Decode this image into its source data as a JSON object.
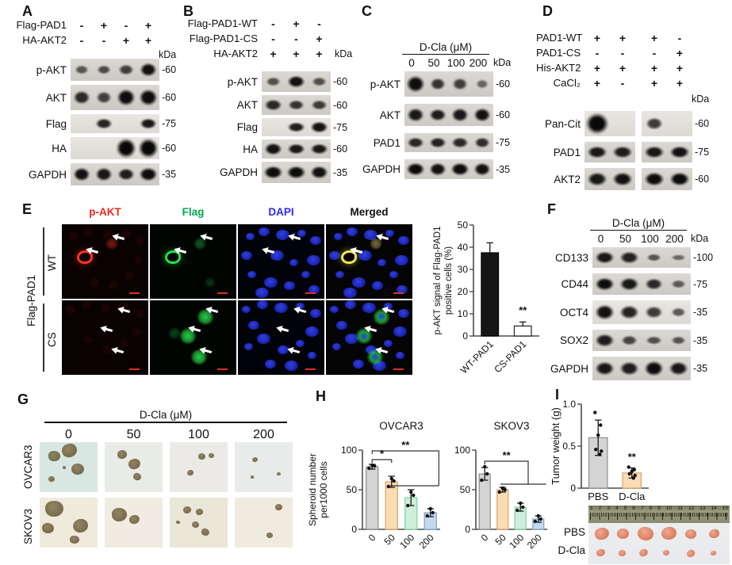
{
  "panel_a": {
    "label": "A",
    "conditions": [
      {
        "name": "Flag-PAD1",
        "values": [
          "-",
          "+",
          "-",
          "+"
        ]
      },
      {
        "name": "HA-AKT2",
        "values": [
          "-",
          "-",
          "+",
          "+"
        ]
      }
    ],
    "kda": "kDa",
    "blots": [
      {
        "label": "p-AKT",
        "marker": "60",
        "bands": [
          0.3,
          0.4,
          0.5,
          0.9
        ]
      },
      {
        "label": "AKT",
        "marker": "60",
        "bands": [
          0.7,
          0.5,
          0.95,
          0.95
        ]
      },
      {
        "label": "Flag",
        "marker": "75",
        "bands": [
          0,
          0.75,
          0,
          0.85
        ],
        "light": true
      },
      {
        "label": "HA",
        "marker": "60",
        "bands": [
          0,
          0,
          1,
          1
        ],
        "light": true
      },
      {
        "label": "GAPDH",
        "marker": "35",
        "bands": [
          0.9,
          0.85,
          0.8,
          0.95
        ]
      }
    ]
  },
  "panel_b": {
    "label": "B",
    "conditions": [
      {
        "name": "Flag-PAD1-WT",
        "values": [
          "-",
          "+",
          "-"
        ]
      },
      {
        "name": "Flag-PAD1-CS",
        "values": [
          "-",
          "-",
          "+"
        ]
      },
      {
        "name": "HA-AKT2",
        "values": [
          "+",
          "+",
          "+"
        ]
      }
    ],
    "kda": "kDa",
    "blots": [
      {
        "label": "p-AKT",
        "marker": "60",
        "bands": [
          0.35,
          0.9,
          0.35
        ]
      },
      {
        "label": "AKT",
        "marker": "60",
        "bands": [
          0.7,
          0.6,
          0.55
        ]
      },
      {
        "label": "Flag",
        "marker": "75",
        "bands": [
          0,
          0.8,
          0.9
        ],
        "light": true
      },
      {
        "label": "HA",
        "marker": "60",
        "bands": [
          0.9,
          0.85,
          0.85
        ]
      },
      {
        "label": "GAPDH",
        "marker": "35",
        "bands": [
          0.95,
          0.95,
          0.9
        ]
      }
    ]
  },
  "panel_c": {
    "label": "C",
    "dose_title": "D-Cla (μM)",
    "doses": [
      "0",
      "50",
      "100",
      "200"
    ],
    "kda": "kDa",
    "blots": [
      {
        "label": "p-AKT",
        "marker": "60",
        "bands": [
          0.95,
          0.6,
          0.5,
          0.15
        ]
      },
      {
        "label": "AKT",
        "marker": "60",
        "bands": [
          0.85,
          0.8,
          0.85,
          0.9
        ]
      },
      {
        "label": "PAD1",
        "marker": "75",
        "bands": [
          0.7,
          0.75,
          0.7,
          0.65
        ]
      },
      {
        "label": "GAPDH",
        "marker": "35",
        "bands": [
          0.95,
          0.9,
          0.95,
          0.9
        ]
      }
    ]
  },
  "panel_d": {
    "label": "D",
    "conditions": [
      {
        "name": "PAD1-WT",
        "values": [
          "+",
          "+",
          "+",
          "-"
        ]
      },
      {
        "name": "PAD1-CS",
        "values": [
          "-",
          "-",
          "-",
          "+"
        ]
      },
      {
        "name": "His-AKT2",
        "values": [
          "+",
          "+",
          "+",
          "+"
        ]
      },
      {
        "name": "CaCl₂",
        "values": [
          "+",
          "-",
          "+",
          "+"
        ]
      }
    ],
    "kda": "kDa",
    "blots": [
      {
        "label": "Pan-Cit",
        "marker": "60",
        "bands": [
          1,
          0,
          0.55,
          0
        ],
        "light": true
      },
      {
        "label": "PAD1",
        "marker": "75",
        "bands": [
          0.85,
          0.8,
          0.85,
          0.9
        ]
      },
      {
        "label": "AKT2",
        "marker": "60",
        "bands": [
          0.85,
          0.9,
          0.95,
          0.95
        ]
      }
    ]
  },
  "panel_e": {
    "label": "E",
    "row_group_label": "Flag-PAD1",
    "rows": [
      "WT",
      "CS"
    ],
    "channels": [
      {
        "name": "p-AKT",
        "color": "#e8281e"
      },
      {
        "name": "Flag",
        "color": "#00a651"
      },
      {
        "name": "DAPI",
        "color": "#2b2bf5"
      },
      {
        "name": "Merged",
        "color": "#111111"
      }
    ]
  },
  "panel_f": {
    "label": "F",
    "dose_title": "D-Cla (μM)",
    "doses": [
      "0",
      "50",
      "100",
      "200"
    ],
    "kda": "kDa",
    "blots": [
      {
        "label": "CD133",
        "marker": "100",
        "bands": [
          0.85,
          0.75,
          0.3,
          0.12
        ]
      },
      {
        "label": "CD44",
        "marker": "75",
        "bands": [
          0.95,
          0.85,
          0.7,
          0.25
        ]
      },
      {
        "label": "OCT4",
        "marker": "35",
        "bands": [
          0.9,
          0.75,
          0.55,
          0.3
        ],
        "light": true
      },
      {
        "label": "SOX2",
        "marker": "35",
        "bands": [
          0.8,
          0.45,
          0.35,
          0.3
        ]
      },
      {
        "label": "GAPDH",
        "marker": "35",
        "bands": [
          0.85,
          0.8,
          0.95,
          0.85
        ]
      }
    ]
  },
  "panel_g": {
    "label": "G",
    "dose_title": "D-Cla  (μM)",
    "doses": [
      "0",
      "50",
      "100",
      "200"
    ],
    "rows": [
      "OVCAR3",
      "SKOV3"
    ]
  },
  "panel_h": {
    "label": "H"
  },
  "panel_i": {
    "label": "I",
    "photo_rows": [
      "PBS",
      "D-Cla"
    ],
    "ruler_numbers": [
      "1",
      "2",
      "3",
      "4",
      "5",
      "6",
      "7",
      "8",
      "9",
      "10",
      "11",
      "12",
      "13",
      "14",
      "15"
    ]
  },
  "chart_data": [
    {
      "id": "pakt-signal",
      "type": "bar",
      "categories": [
        "WT-PAD1",
        "CS-PAD1"
      ],
      "values": [
        37.5,
        4.5
      ],
      "errors": [
        4.5,
        1.8
      ],
      "ylabel": "p-AKT signal of Flag-PAD1 positive cells (%)",
      "ylabel_lines": [
        "p-AKT signal of Flag-PAD1",
        "positive cells (%)"
      ],
      "ylim": [
        0,
        50
      ],
      "yticks": [
        0,
        10,
        20,
        30,
        40,
        50
      ],
      "bar_fills": [
        "#161616",
        "#ffffff"
      ],
      "bar_strokes": [
        "#000000",
        "#222222"
      ],
      "sig": [
        {
          "label": "**",
          "type": "star",
          "cat": "CS-PAD1",
          "y": 10
        }
      ]
    },
    {
      "id": "ovcar3",
      "type": "bar",
      "title": "OVCAR3",
      "categories": [
        "0",
        "50",
        "100",
        "200"
      ],
      "values": [
        79,
        60,
        40,
        21
      ],
      "errors": [
        3,
        7,
        10,
        5
      ],
      "dots": [
        [
          77,
          80,
          81
        ],
        [
          54,
          61,
          64
        ],
        [
          30,
          43,
          47
        ],
        [
          17,
          21,
          26
        ]
      ],
      "ylabel": "Spheroid number per1000 cells",
      "ylabel_lines": [
        "Spheroid number",
        "per1000 cells"
      ],
      "ylim": [
        0,
        100
      ],
      "yticks": [
        0,
        50,
        100
      ],
      "bar_fills": [
        "#d4d4d4",
        "#fadcb4",
        "#cdf0dc",
        "#c4d8ef"
      ],
      "bar_strokes": [
        "#8c8c8c",
        "#dba368",
        "#84cca4",
        "#7fa3cc"
      ],
      "sig": [
        {
          "label": "*",
          "type": "simple",
          "from": "0",
          "to": "50",
          "y": 88
        },
        {
          "label": "**",
          "type": "drop",
          "from": "0",
          "to": "200",
          "y": 99,
          "y2": 55,
          "span2_from": "50",
          "span2_to": "200"
        }
      ]
    },
    {
      "id": "skov3",
      "type": "bar",
      "title": "SKOV3",
      "categories": [
        "0",
        "50",
        "100",
        "200"
      ],
      "values": [
        70,
        50,
        28,
        13
      ],
      "errors": [
        8,
        3,
        5,
        4
      ],
      "dots": [
        [
          62,
          70,
          79
        ],
        [
          47,
          50,
          52
        ],
        [
          24,
          28,
          33
        ],
        [
          10,
          13,
          17
        ]
      ],
      "ylim": [
        0,
        100
      ],
      "yticks": [
        0,
        50,
        100
      ],
      "bar_fills": [
        "#d4d4d4",
        "#fadcb4",
        "#cdf0dc",
        "#c4d8ef"
      ],
      "bar_strokes": [
        "#8c8c8c",
        "#dba368",
        "#84cca4",
        "#7fa3cc"
      ],
      "sig": [
        {
          "label": "**",
          "type": "drop",
          "from": "0",
          "to": "100",
          "y": 86,
          "y2": 57,
          "span2_from": "50",
          "span2_to": "200"
        }
      ]
    },
    {
      "id": "tumor-weight",
      "type": "bar",
      "categories": [
        "PBS",
        "D-Cla"
      ],
      "values": [
        0.6,
        0.18
      ],
      "errors": [
        0.21,
        0.06
      ],
      "dots": [
        [
          0.9,
          0.75,
          0.63,
          0.46,
          0.44,
          0.4
        ],
        [
          0.25,
          0.22,
          0.2,
          0.17,
          0.15,
          0.12
        ]
      ],
      "ylabel": "Tumor weight (g)",
      "ylim": [
        0,
        1.0
      ],
      "yticks": [
        0,
        0.5,
        1.0
      ],
      "ytick_labels": [
        "0",
        "0.5",
        "1.0"
      ],
      "bar_fills": [
        "#d4d4d4",
        "#fbdcb6"
      ],
      "bar_strokes": [
        "#8c8c8c",
        "#dba368"
      ],
      "sig": [
        {
          "label": "**",
          "type": "star",
          "cat": "D-Cla",
          "y": 0.33
        }
      ]
    }
  ]
}
